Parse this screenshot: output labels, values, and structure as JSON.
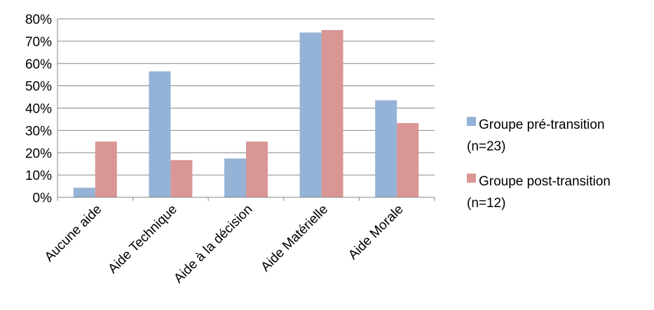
{
  "chart_data": {
    "type": "bar",
    "title": "",
    "xlabel": "",
    "ylabel": "",
    "categories": [
      "Aucune aide",
      "Aide Technique",
      "Aide à la décision",
      "Aide Matérielle",
      "Aide Morale"
    ],
    "series": [
      {
        "name": "Groupe pré-transition (n=23)",
        "name_lines": [
          "Groupe pré-transition",
          "(n=23)"
        ],
        "color": "#95B3D7",
        "values": [
          4.3,
          56.5,
          17.4,
          73.9,
          43.5
        ]
      },
      {
        "name": "Groupe post-transition (n=12)",
        "name_lines": [
          "Groupe post-transition",
          "(n=12)"
        ],
        "color": "#D99694",
        "values": [
          25,
          16.7,
          25,
          75,
          33.3
        ]
      }
    ],
    "ylim": [
      0,
      80
    ],
    "yticks": [
      "0%",
      "10%",
      "20%",
      "30%",
      "40%",
      "50%",
      "60%",
      "70%",
      "80%"
    ],
    "grid": true,
    "legend_position": "right",
    "x_tick_rotation": "-45deg"
  }
}
